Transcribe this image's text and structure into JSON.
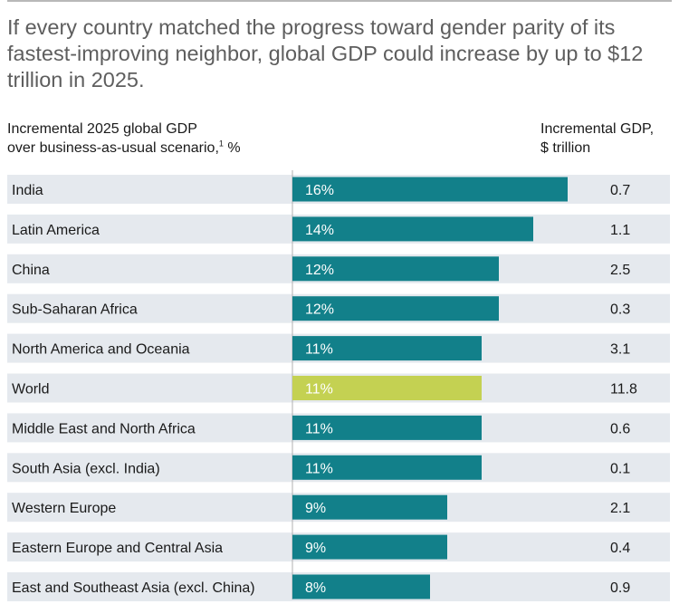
{
  "title": "If every country matched the progress toward gender parity of its fastest-improving neighbor, global GDP could increase by up to $12 trillion in 2025.",
  "subtitle_left_line1": "Incremental 2025 global GDP",
  "subtitle_left_line2": "over business-as-usual scenario,",
  "subtitle_left_footnote": "1",
  "subtitle_left_unit": " %",
  "subtitle_right_line1": "Incremental GDP,",
  "subtitle_right_line2": "$ trillion",
  "colors": {
    "bar": "#12808a",
    "highlight": "#c4d152",
    "row_band": "#e5e9ee",
    "axis": "#b0b0b0"
  },
  "chart_data": {
    "type": "bar",
    "orientation": "horizontal",
    "categories": [
      "India",
      "Latin America",
      "China",
      "Sub-Saharan Africa",
      "North America and Oceania",
      "World",
      "Middle East and North Africa",
      "South Asia (excl. India)",
      "Western Europe",
      "Eastern Europe and Central Asia",
      "East and Southeast Asia (excl. China)"
    ],
    "values": [
      16,
      14,
      12,
      12,
      11,
      11,
      11,
      11,
      9,
      9,
      8
    ],
    "value_labels": [
      "16%",
      "14%",
      "12%",
      "12%",
      "11%",
      "11%",
      "11%",
      "11%",
      "9%",
      "9%",
      "8%"
    ],
    "gdp_trillion": [
      "0.7",
      "1.1",
      "2.5",
      "0.3",
      "3.1",
      "11.8",
      "0.6",
      "0.1",
      "2.1",
      "0.4",
      "0.9"
    ],
    "highlight_category": "World",
    "xlim": [
      0,
      16
    ],
    "xlabel": "Incremental 2025 global GDP over business-as-usual scenario, %",
    "secondary_column_label": "Incremental GDP, $ trillion"
  }
}
